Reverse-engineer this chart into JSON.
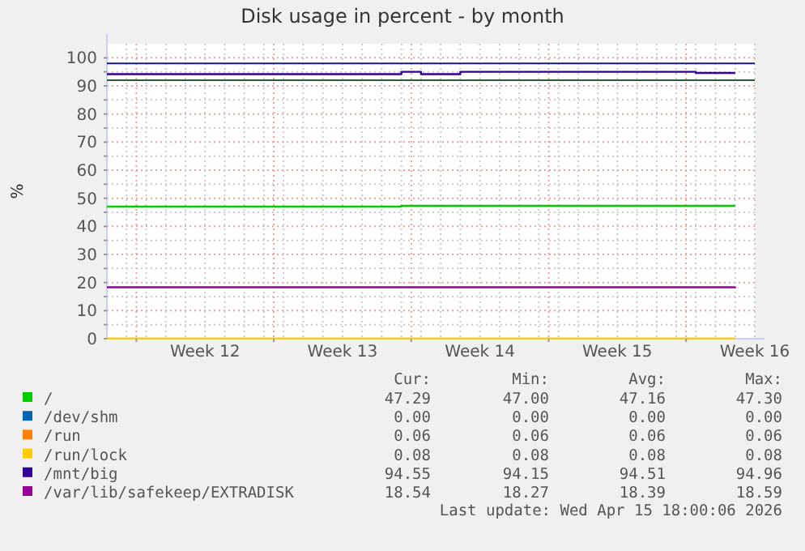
{
  "chart_data": {
    "type": "step",
    "title": "Disk usage in percent - by month",
    "ylabel": "%",
    "categories": [
      null,
      null,
      null,
      null,
      null,
      "Week 12",
      null,
      null,
      null,
      null,
      null,
      null,
      "Week 13",
      null,
      null,
      null,
      null,
      null,
      null,
      "Week 14",
      null,
      null,
      null,
      null,
      null,
      null,
      "Week 15",
      null,
      null,
      null,
      null,
      null,
      null,
      "Week 16"
    ],
    "ylim": [
      0,
      105
    ],
    "yticks": [
      0,
      {
        "value": 5,
        "label": null
      },
      10,
      {
        "value": 15,
        "label": null
      },
      20,
      {
        "value": 25,
        "label": null
      },
      30,
      {
        "value": 35,
        "label": null
      },
      40,
      {
        "value": 45,
        "label": null
      },
      50,
      {
        "value": 55,
        "label": null
      },
      60,
      {
        "value": 65,
        "label": null
      },
      70,
      {
        "value": 75,
        "label": null
      },
      80,
      {
        "value": 85,
        "label": null
      },
      90,
      {
        "value": 95,
        "label": null
      },
      100
    ],
    "grid": true,
    "legend": "bottom",
    "marker": "none",
    "line_style": "solid",
    "series": [
      {
        "name": "/",
        "color": "#00cc00",
        "values": [
          47.0,
          47.0,
          47.0,
          47.0,
          47.0,
          47.0,
          47.0,
          47.0,
          47.0,
          47.0,
          47.0,
          47.0,
          47.0,
          47.0,
          47.0,
          47.3,
          47.3,
          47.3,
          47.3,
          47.3,
          47.3,
          47.3,
          47.3,
          47.3,
          47.3,
          47.3,
          47.3,
          47.3,
          47.3,
          47.3,
          47.3,
          47.3,
          47.3,
          null
        ]
      },
      {
        "name": "/dev/shm",
        "color": "#0066b3",
        "values": [
          null,
          null,
          null,
          null,
          null,
          null,
          null,
          null,
          null,
          null,
          null,
          null,
          null,
          null,
          null,
          null,
          null,
          null,
          null,
          null,
          null,
          null,
          null,
          null,
          null,
          null,
          null,
          null,
          null,
          null,
          null,
          null,
          null,
          null
        ]
      },
      {
        "name": "/run",
        "color": "#ff8000",
        "values": [
          null,
          null,
          null,
          null,
          null,
          null,
          null,
          null,
          null,
          null,
          null,
          null,
          null,
          null,
          null,
          null,
          null,
          null,
          null,
          null,
          null,
          null,
          null,
          null,
          null,
          null,
          null,
          null,
          null,
          null,
          null,
          null,
          null,
          null
        ]
      },
      {
        "name": "/run/lock",
        "color": "#ffcc00",
        "values": [
          0.1,
          0.1,
          0.1,
          0.1,
          0.1,
          0.1,
          0.1,
          0.1,
          0.1,
          0.1,
          0.1,
          0.1,
          0.1,
          0.1,
          0.1,
          0.1,
          0.1,
          0.1,
          0.1,
          0.1,
          0.1,
          0.1,
          0.1,
          0.1,
          0.1,
          0.1,
          0.1,
          0.1,
          0.1,
          0.1,
          0.1,
          0.1,
          0.1,
          null
        ]
      },
      {
        "name": "/mnt/big",
        "color": "#330099",
        "values": [
          94.2,
          94.2,
          94.2,
          94.2,
          94.2,
          94.2,
          94.2,
          94.2,
          94.2,
          94.2,
          94.2,
          94.2,
          94.2,
          94.2,
          94.2,
          95.0,
          94.2,
          94.2,
          95.0,
          95.0,
          95.0,
          95.0,
          95.0,
          95.0,
          95.0,
          95.0,
          95.0,
          95.0,
          95.0,
          95.0,
          94.6,
          94.6,
          94.6,
          null
        ]
      },
      {
        "name": "/var/lib/safekeep/EXTRADISK",
        "color": "#990099",
        "values": [
          18.3,
          18.3,
          18.3,
          18.3,
          18.3,
          18.3,
          18.3,
          18.3,
          18.3,
          18.3,
          18.3,
          18.3,
          18.3,
          18.3,
          18.3,
          18.3,
          18.3,
          18.3,
          18.3,
          18.3,
          18.3,
          18.3,
          18.3,
          18.3,
          18.3,
          18.3,
          18.3,
          18.3,
          18.3,
          18.3,
          18.3,
          18.3,
          18.5,
          null
        ]
      }
    ],
    "ref_lines": [
      {
        "axis": "y",
        "value": 98,
        "color": "#1a1a80"
      },
      {
        "axis": "y",
        "value": 92,
        "color": "#2d5a2d"
      }
    ],
    "annotations": [
      "Cur:",
      "Min:",
      "Avg:",
      "Max:",
      "47.29",
      "47.00",
      "47.16",
      "47.30",
      "0.00",
      "0.00",
      "0.00",
      "0.00",
      "0.06",
      "0.06",
      "0.06",
      "0.06",
      "0.08",
      "0.08",
      "0.08",
      "0.08",
      "94.55",
      "94.15",
      "94.51",
      "94.96",
      "18.54",
      "18.27",
      "18.39",
      "18.59",
      "Last update: Wed Apr 15 18:00:06 2026"
    ]
  }
}
